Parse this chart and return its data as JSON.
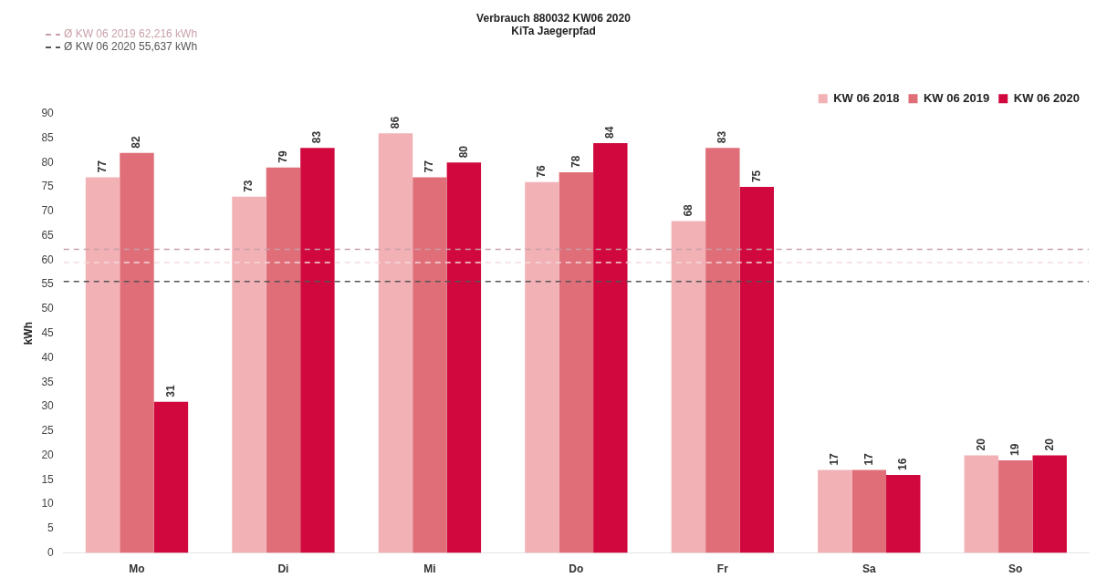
{
  "chart_data": {
    "type": "bar",
    "title": "Verbrauch 880032 KW06 2020",
    "subtitle": "KiTa Jaegerpfad",
    "ylabel": "kWh",
    "categories": [
      "Mo",
      "Di",
      "Mi",
      "Do",
      "Fr",
      "Sa",
      "So"
    ],
    "series": [
      {
        "name": "KW 06 2018",
        "color": "#f2b1b5",
        "values": [
          77,
          73,
          86,
          76,
          68,
          17,
          20
        ]
      },
      {
        "name": "KW 06 2019",
        "color": "#e06e79",
        "values": [
          82,
          79,
          77,
          78,
          83,
          17,
          19
        ]
      },
      {
        "name": "KW 06 2020",
        "color": "#d0083e",
        "values": [
          31,
          83,
          80,
          84,
          75,
          16,
          20
        ]
      }
    ],
    "ylim": [
      0,
      90
    ],
    "yticks": [
      0,
      5,
      10,
      15,
      20,
      25,
      30,
      35,
      40,
      45,
      50,
      55,
      60,
      65,
      70,
      75,
      80,
      85,
      90
    ],
    "ref_lines": [
      {
        "axis": "y",
        "value": 59.5,
        "color": "#f5dadc",
        "line_style": "dashed"
      },
      {
        "axis": "y",
        "value": 62.216,
        "label": "Ø KW 06 2019 62,216 kWh",
        "color": "#c8a0a8",
        "line_style": "dashed"
      },
      {
        "axis": "y",
        "value": 55.637,
        "label": "Ø KW 06 2020 55,637 kWh",
        "color": "#555555",
        "line_style": "dashed"
      }
    ],
    "data_labels": true,
    "grid": false,
    "legend": "top right"
  }
}
